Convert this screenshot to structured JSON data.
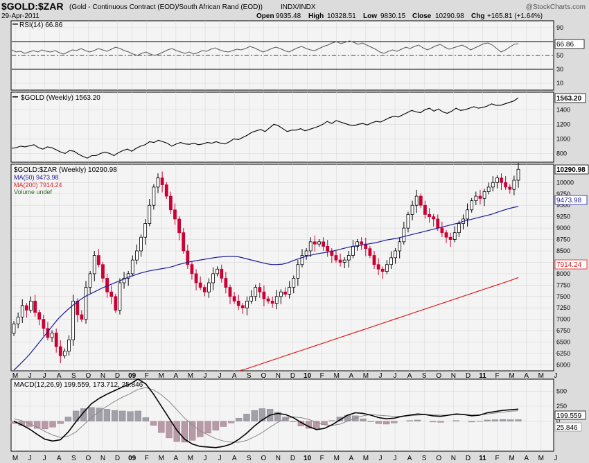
{
  "header": {
    "symbol": "$GOLD:$ZAR",
    "description": "(Gold - Continuous Contract (EOD)/South African Rand (EOD))",
    "exchange": "INDX/INDX",
    "source": "@StockCharts.com",
    "date": "29-Apr-2011",
    "open_label": "Open",
    "open": "9935.48",
    "high_label": "High",
    "high": "10328.51",
    "low_label": "Low",
    "low": "9830.15",
    "close_label": "Close",
    "close": "10290.98",
    "chg_label": "Chg",
    "chg": "+165.81 (+1.64%)"
  },
  "colors": {
    "up": "#000000",
    "down": "#cc0033",
    "ma50": "#1a1a99",
    "ma200": "#e02020",
    "macd_hist": "#b89aa6",
    "macd_hist_pos": "#a0a0a8",
    "grid": "#d8d8d8"
  },
  "x_axis_labels": [
    "M",
    "J",
    "J",
    "A",
    "S",
    "O",
    "N",
    "D",
    "09",
    "F",
    "M",
    "A",
    "M",
    "J",
    "J",
    "A",
    "S",
    "O",
    "N",
    "D",
    "10",
    "F",
    "M",
    "A",
    "M",
    "J",
    "J",
    "A",
    "S",
    "O",
    "N",
    "D",
    "11",
    "F",
    "M",
    "A",
    "M",
    "J"
  ],
  "chart_data": [
    {
      "type": "line",
      "panel": "rsi",
      "legend": "RSI(14) 66.86",
      "last_value": "66.86",
      "y_ticks": [
        "90",
        "70",
        "50",
        "30",
        "10"
      ],
      "overbought": 70,
      "oversold": 30,
      "midline": 50,
      "ylim": [
        0,
        100
      ],
      "values": [
        58,
        55,
        56,
        53,
        55,
        57,
        55,
        58,
        56,
        55,
        57,
        54,
        52,
        55,
        58,
        57,
        60,
        57,
        55,
        57,
        60,
        58,
        56,
        59,
        62,
        60,
        57,
        55,
        52,
        50,
        53,
        55,
        52,
        50,
        52,
        55,
        58,
        60,
        57,
        55,
        53,
        55,
        52,
        54,
        57,
        56,
        59,
        61,
        58,
        56,
        55,
        57,
        59,
        58,
        60,
        63,
        61,
        58,
        55,
        57,
        60,
        62,
        60,
        57,
        55,
        58,
        61,
        63,
        60,
        58,
        57,
        60,
        63,
        65,
        68,
        70,
        67,
        69,
        71,
        69,
        66,
        68,
        65,
        62,
        59,
        55,
        53,
        56,
        58,
        56,
        59,
        62,
        60,
        63,
        65,
        61,
        58,
        61,
        64,
        66,
        62,
        59,
        61,
        63,
        65,
        62,
        58,
        61,
        64,
        67,
        68,
        65,
        60,
        55,
        58,
        62,
        66,
        67
      ]
    },
    {
      "type": "line",
      "panel": "gold",
      "legend": "$GOLD (Weekly) 1563.20",
      "last_value": "1563.20",
      "y_ticks": [
        "1400",
        "1200",
        "1000",
        "800"
      ],
      "ylim": [
        680,
        1640
      ],
      "values": [
        870,
        880,
        900,
        890,
        905,
        920,
        880,
        860,
        890,
        880,
        850,
        820,
        800,
        840,
        830,
        790,
        760,
        735,
        770,
        770,
        800,
        820,
        800,
        770,
        810,
        840,
        860,
        830,
        870,
        900,
        920,
        960,
        950,
        980,
        960,
        940,
        900,
        930,
        950,
        930,
        925,
        940,
        920,
        930,
        950,
        940,
        960,
        940,
        930,
        960,
        1000,
        990,
        1020,
        1050,
        1090,
        1110,
        1130,
        1100,
        1150,
        1200,
        1180,
        1140,
        1100,
        1120,
        1120,
        1140,
        1110,
        1130,
        1150,
        1170,
        1200,
        1240,
        1210,
        1250,
        1230,
        1210,
        1190,
        1180,
        1200,
        1210,
        1190,
        1220,
        1240,
        1230,
        1260,
        1290,
        1310,
        1300,
        1330,
        1360,
        1390,
        1370,
        1360,
        1400,
        1420,
        1380,
        1410,
        1370,
        1350,
        1380,
        1420,
        1390,
        1400,
        1420,
        1440,
        1420,
        1430,
        1450,
        1480,
        1460,
        1460,
        1480,
        1500,
        1520,
        1563
      ]
    },
    {
      "type": "candlestick",
      "panel": "price",
      "legend": "$GOLD:$ZAR (Weekly) 10290.98",
      "ma50_label": "MA(50) 9473.98",
      "ma200_label": "MA(200) 7914.24",
      "volume_label": "Volume undef",
      "last_value": "10290.98",
      "ma50_last": "9473.98",
      "ma200_last": "7914.24",
      "y_ticks": [
        "10000",
        "9750",
        "9500",
        "9250",
        "9000",
        "8750",
        "8500",
        "8250",
        "8000",
        "7750",
        "7500",
        "7250",
        "7000",
        "6750",
        "6500",
        "6250",
        "6000"
      ],
      "ylim": [
        5870,
        10400
      ],
      "closes": [
        6900,
        7050,
        7300,
        7200,
        7400,
        7150,
        7000,
        6800,
        6600,
        6700,
        6400,
        6200,
        6300,
        6550,
        7400,
        7100,
        7000,
        7700,
        8000,
        8400,
        8200,
        7900,
        7600,
        7500,
        7200,
        7800,
        7900,
        8000,
        8300,
        8500,
        8800,
        9100,
        9500,
        9900,
        10100,
        9950,
        9700,
        9400,
        9200,
        8900,
        8500,
        8200,
        8000,
        7800,
        7700,
        7600,
        7800,
        8000,
        8100,
        7900,
        7700,
        7500,
        7400,
        7300,
        7250,
        7400,
        7500,
        7700,
        7600,
        7450,
        7400,
        7350,
        7500,
        7600,
        7550,
        7700,
        7900,
        8200,
        8400,
        8500,
        8700,
        8650,
        8700,
        8600,
        8500,
        8400,
        8300,
        8250,
        8300,
        8400,
        8600,
        8700,
        8650,
        8550,
        8400,
        8200,
        8100,
        8050,
        8200,
        8350,
        8500,
        8700,
        9000,
        9300,
        9500,
        9700,
        9500,
        9300,
        9250,
        9200,
        9000,
        8900,
        8800,
        8750,
        8900,
        9100,
        9200,
        9400,
        9600,
        9700,
        9650,
        9800,
        9900,
        10000,
        10100,
        10000,
        9900,
        9850,
        10050,
        10290
      ],
      "ma50": [
        5880,
        6000,
        6120,
        6250,
        6400,
        6550,
        6700,
        6850,
        7000,
        7120,
        7230,
        7330,
        7420,
        7500,
        7560,
        7620,
        7680,
        7730,
        7780,
        7830,
        7880,
        7930,
        7970,
        8010,
        8040,
        8070,
        8090,
        8110,
        8130,
        8160,
        8200,
        8230,
        8260,
        8280,
        8300,
        8320,
        8340,
        8360,
        8370,
        8380,
        8380,
        8370,
        8340,
        8310,
        8280,
        8250,
        8220,
        8200,
        8200,
        8210,
        8240,
        8290,
        8330,
        8370,
        8400,
        8430,
        8450,
        8470,
        8490,
        8520,
        8550,
        8580,
        8600,
        8620,
        8640,
        8660,
        8680,
        8710,
        8740,
        8760,
        8780,
        8810,
        8840,
        8870,
        8900,
        8930,
        8960,
        8990,
        9020,
        9050,
        9080,
        9110,
        9150,
        9180,
        9210,
        9240,
        9270,
        9300,
        9340,
        9380,
        9420,
        9450,
        9474
      ],
      "ma200": [
        5870,
        5910,
        5960,
        6010,
        6060,
        6110,
        6160,
        6210,
        6260,
        6310,
        6360,
        6410,
        6460,
        6510,
        6560,
        6610,
        6660,
        6710,
        6760,
        6810,
        6860,
        6910,
        6960,
        7010,
        7060,
        7110,
        7160,
        7210,
        7260,
        7310,
        7360,
        7410,
        7460,
        7510,
        7560,
        7610,
        7660,
        7710,
        7760,
        7810,
        7860,
        7914
      ]
    },
    {
      "type": "line",
      "panel": "macd",
      "legend": "MACD(12,26,9) 199.559, 173.712, 25.846",
      "macd_value": "199.559",
      "signal_value": "173.712",
      "hist_value": "25.846",
      "y_ticks": [
        "500",
        "250",
        "0"
      ],
      "ylim": [
        -500,
        700
      ],
      "macd": [
        0,
        -60,
        -130,
        -220,
        -300,
        -330,
        -310,
        -180,
        -10,
        150,
        290,
        380,
        450,
        510,
        570,
        620,
        700,
        620,
        450,
        250,
        50,
        -150,
        -300,
        -380,
        -420,
        -430,
        -440,
        -420,
        -380,
        -300,
        -200,
        -80,
        20,
        100,
        130,
        110,
        60,
        -20,
        -90,
        -140,
        -120,
        -60,
        20,
        100,
        140,
        130,
        100,
        60,
        40,
        50,
        80,
        100,
        120,
        110,
        90,
        80,
        100,
        120,
        110,
        90,
        100,
        140,
        160,
        180,
        190,
        200
      ],
      "signal": [
        40,
        10,
        -40,
        -100,
        -170,
        -230,
        -270,
        -250,
        -180,
        -60,
        60,
        160,
        250,
        330,
        400,
        460,
        530,
        560,
        520,
        440,
        330,
        190,
        50,
        -60,
        -160,
        -230,
        -290,
        -330,
        -350,
        -350,
        -320,
        -260,
        -190,
        -100,
        -20,
        40,
        70,
        60,
        30,
        -20,
        -60,
        -70,
        -50,
        0,
        50,
        90,
        110,
        100,
        90,
        80,
        80,
        90,
        100,
        110,
        105,
        100,
        100,
        110,
        110,
        105,
        105,
        120,
        135,
        150,
        165,
        174
      ],
      "hist": [
        -40,
        -70,
        -90,
        -120,
        -130,
        -100,
        -40,
        70,
        170,
        210,
        230,
        220,
        200,
        180,
        170,
        160,
        170,
        60,
        -70,
        -190,
        -280,
        -340,
        -350,
        -320,
        -260,
        -200,
        -150,
        -90,
        -30,
        50,
        120,
        180,
        210,
        200,
        150,
        70,
        -10,
        -80,
        -120,
        -120,
        -60,
        10,
        70,
        100,
        90,
        40,
        -10,
        -40,
        -50,
        -30,
        0,
        10,
        20,
        0,
        -15,
        -20,
        0,
        10,
        0,
        -15,
        -5,
        20,
        25,
        30,
        25,
        26
      ]
    }
  ]
}
